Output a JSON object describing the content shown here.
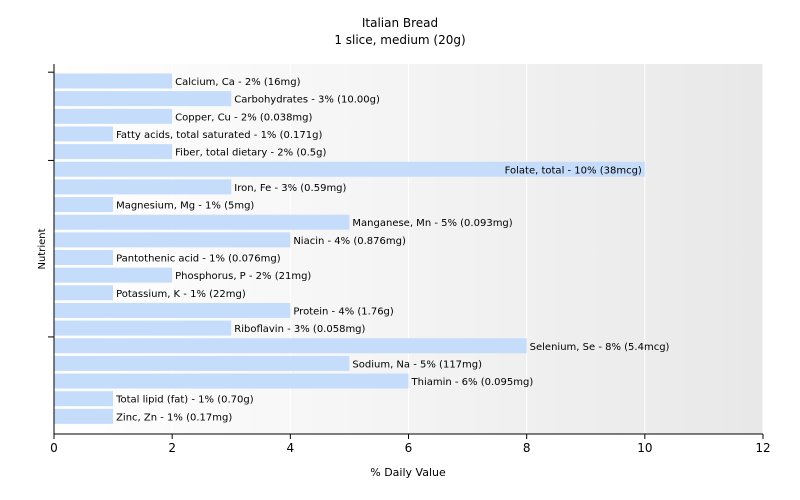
{
  "chart_data": {
    "type": "bar",
    "orientation": "horizontal",
    "title": "Italian Bread",
    "subtitle": "1 slice, medium (20g)",
    "xlabel": "% Daily Value",
    "ylabel": "Nutrient",
    "xlim": [
      0,
      12
    ],
    "xticks": [
      0,
      2,
      4,
      6,
      8,
      10,
      12
    ],
    "bar_color": "#c6dcfb",
    "background": "gradient white to light gray",
    "categories": [
      "Calcium, Ca",
      "Carbohydrates",
      "Copper, Cu",
      "Fatty acids, total saturated",
      "Fiber, total dietary",
      "Folate, total",
      "Iron, Fe",
      "Magnesium, Mg",
      "Manganese, Mn",
      "Niacin",
      "Pantothenic acid",
      "Phosphorus, P",
      "Potassium, K",
      "Protein",
      "Riboflavin",
      "Selenium, Se",
      "Sodium, Na",
      "Thiamin",
      "Total lipid (fat)",
      "Zinc, Zn"
    ],
    "values": [
      2,
      3,
      2,
      1,
      2,
      10,
      3,
      1,
      5,
      4,
      1,
      2,
      1,
      4,
      3,
      8,
      5,
      6,
      1,
      1
    ],
    "labels": [
      "Calcium, Ca - 2% (16mg)",
      "Carbohydrates - 3% (10.00g)",
      "Copper, Cu - 2% (0.038mg)",
      "Fatty acids, total saturated - 1% (0.171g)",
      "Fiber, total dietary - 2% (0.5g)",
      "Folate, total - 10% (38mcg)",
      "Iron, Fe - 3% (0.59mg)",
      "Magnesium, Mg - 1% (5mg)",
      "Manganese, Mn - 5% (0.093mg)",
      "Niacin - 4% (0.876mg)",
      "Pantothenic acid - 1% (0.076mg)",
      "Phosphorus, P - 2% (21mg)",
      "Potassium, K - 1% (22mg)",
      "Protein - 4% (1.76g)",
      "Riboflavin - 3% (0.058mg)",
      "Selenium, Se - 8% (5.4mcg)",
      "Sodium, Na - 5% (117mg)",
      "Thiamin - 6% (0.095mg)",
      "Total lipid (fat) - 1% (0.70g)",
      "Zinc, Zn - 1% (0.17mg)"
    ]
  }
}
